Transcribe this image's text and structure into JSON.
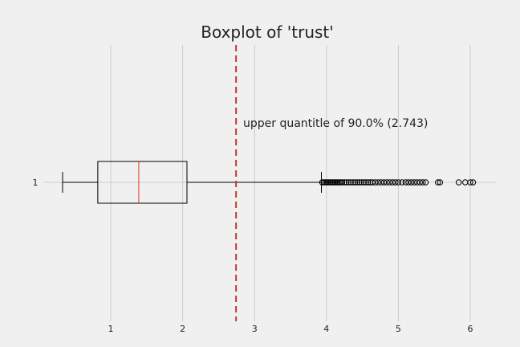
{
  "chart_data": {
    "type": "boxplot",
    "title": "Boxplot of 'trust'",
    "xlabel": "",
    "ylabel": "",
    "orientation": "horizontal",
    "xlim": [
      0.1,
      6.3
    ],
    "x_ticks": [
      1,
      2,
      3,
      4,
      5,
      6
    ],
    "grid": "vertical",
    "series": [
      {
        "label": "1",
        "whisker_low": 0.33,
        "q1": 0.82,
        "median": 1.39,
        "q3": 2.06,
        "whisker_high": 3.93,
        "outliers": [
          3.94,
          3.96,
          3.98,
          4.0,
          4.02,
          4.04,
          4.06,
          4.08,
          4.1,
          4.12,
          4.14,
          4.16,
          4.18,
          4.2,
          4.22,
          4.25,
          4.28,
          4.31,
          4.34,
          4.37,
          4.4,
          4.43,
          4.46,
          4.49,
          4.52,
          4.55,
          4.58,
          4.61,
          4.64,
          4.68,
          4.72,
          4.76,
          4.8,
          4.84,
          4.88,
          4.92,
          4.96,
          5.0,
          5.05,
          5.1,
          5.14,
          5.18,
          5.22,
          5.26,
          5.3,
          5.34,
          5.38,
          5.55,
          5.58,
          5.84,
          5.93,
          6.0,
          6.04
        ]
      }
    ],
    "reference_line": {
      "value": 2.743,
      "style": "dashed",
      "annotation": "upper quantitle of 90.0% (2.743)"
    },
    "colors": {
      "background": "#f0f0f0",
      "grid": "#cbcbcb",
      "box": "#000000",
      "median": "#e5391f",
      "reference_line": "#c0392b"
    }
  }
}
